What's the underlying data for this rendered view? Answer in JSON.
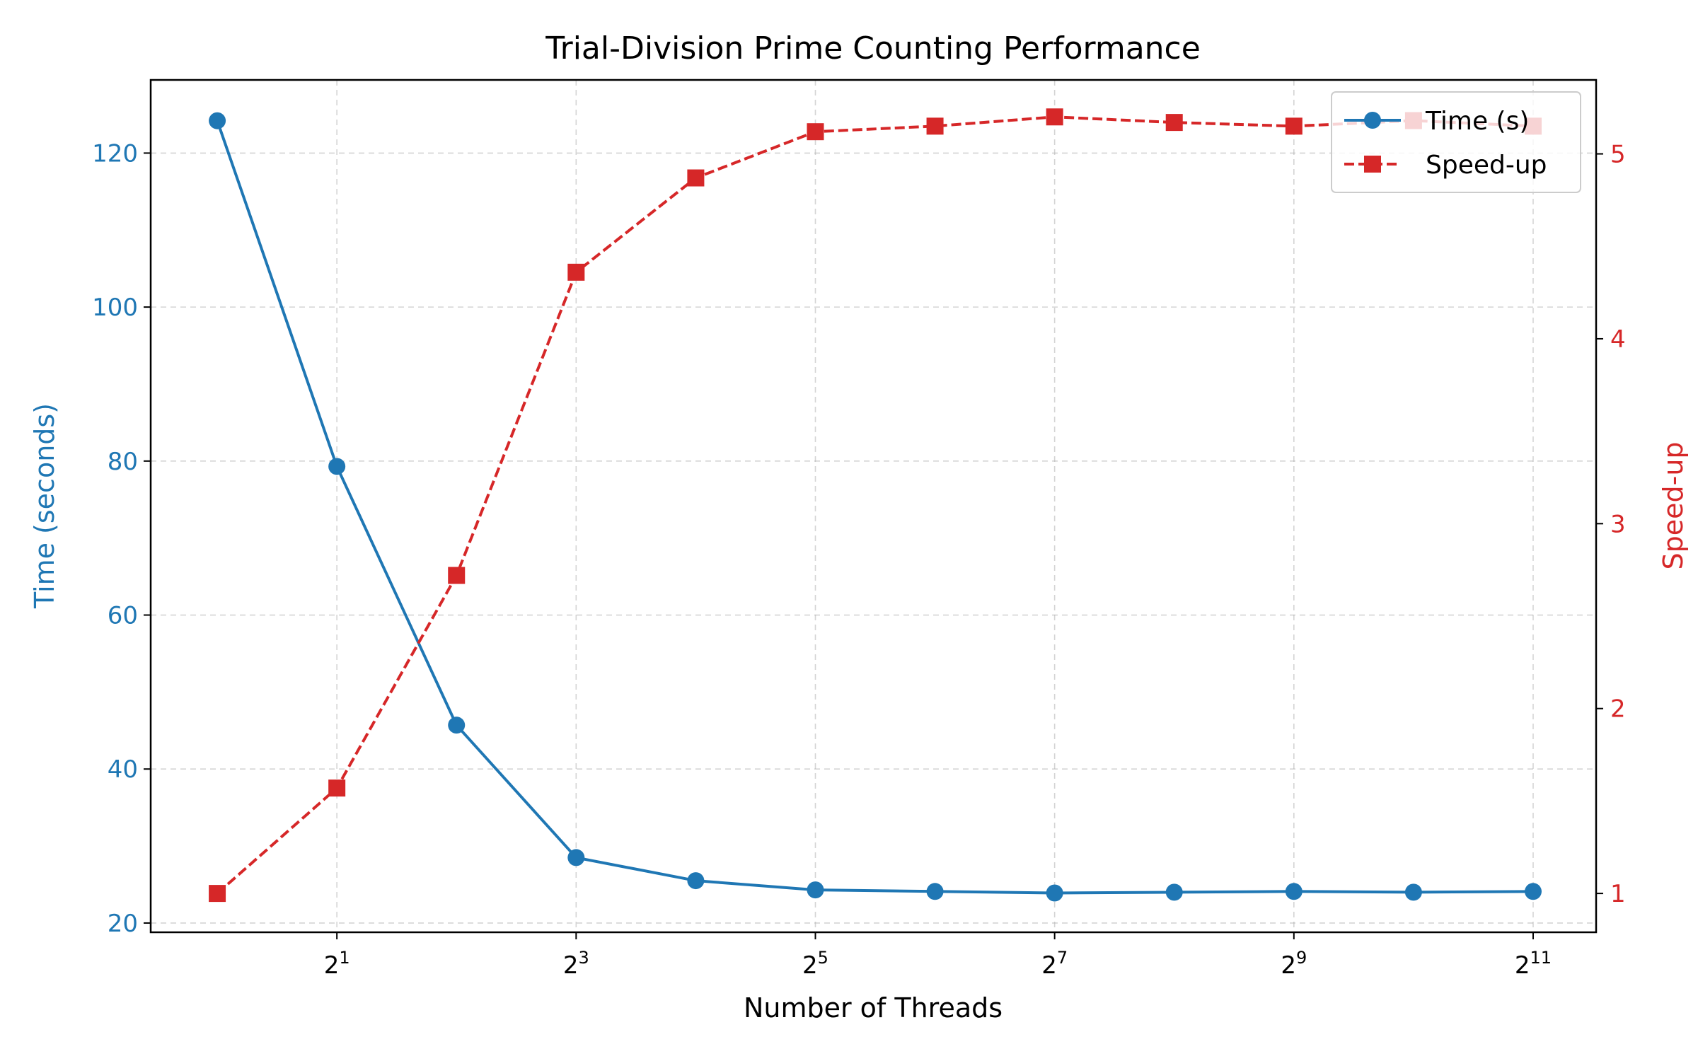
{
  "chart_data": {
    "type": "line",
    "title": "Trial-Division Prime Counting Performance",
    "xlabel": "Number of Threads",
    "x_scale": "log2",
    "x": [
      1,
      2,
      4,
      8,
      16,
      32,
      64,
      128,
      256,
      512,
      1024,
      2048
    ],
    "xlim": [
      0.68,
      2950
    ],
    "x_ticks": [
      {
        "exp": 1,
        "base": "2",
        "sup": "1"
      },
      {
        "exp": 3,
        "base": "2",
        "sup": "3"
      },
      {
        "exp": 5,
        "base": "2",
        "sup": "5"
      },
      {
        "exp": 7,
        "base": "2",
        "sup": "7"
      },
      {
        "exp": 9,
        "base": "2",
        "sup": "9"
      },
      {
        "exp": 11,
        "base": "2",
        "sup": "11"
      }
    ],
    "y_left": {
      "label": "Time (seconds)",
      "color": "#1f77b4",
      "lim": [
        18.8,
        129.5
      ],
      "ticks": [
        20,
        40,
        60,
        80,
        100,
        120
      ]
    },
    "y_right": {
      "label": "Speed-up",
      "color": "#d62728",
      "lim": [
        0.79,
        5.4
      ],
      "ticks": [
        1,
        2,
        3,
        4,
        5
      ]
    },
    "series": [
      {
        "name": "Time (s)",
        "axis": "left",
        "color": "#1f77b4",
        "line": "solid",
        "marker": "circle",
        "values": [
          124.2,
          79.3,
          45.7,
          28.5,
          25.5,
          24.3,
          24.1,
          23.9,
          24.0,
          24.1,
          24.0,
          24.1
        ]
      },
      {
        "name": "Speed-up",
        "axis": "right",
        "color": "#d62728",
        "line": "dashed",
        "marker": "square",
        "values": [
          1.0,
          1.57,
          2.72,
          4.36,
          4.87,
          5.12,
          5.15,
          5.2,
          5.17,
          5.15,
          5.18,
          5.15
        ]
      }
    ],
    "grid": true,
    "legend": "upper right"
  }
}
